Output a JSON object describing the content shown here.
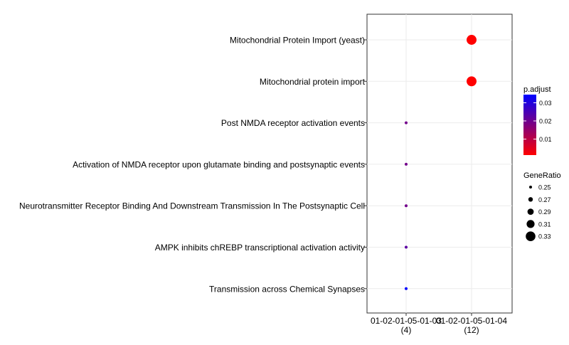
{
  "chart_data": {
    "type": "scatter",
    "title": "",
    "xlabel": "",
    "ylabel": "",
    "categories": [
      {
        "label": "01-02-01-05-01-03",
        "count": "(4)"
      },
      {
        "label": "01-02-01-05-01-04",
        "count": "(12)"
      }
    ],
    "terms": [
      "Mitochondrial Protein Import (yeast)",
      "Mitochondrial protein import",
      "Post NMDA receptor activation events",
      "Activation of NMDA receptor upon glutamate binding and postsynaptic events",
      "Neurotransmitter Receptor Binding And Downstream Transmission In The  Postsynaptic Cell",
      "AMPK inhibits chREBP transcriptional activation activity",
      "Transmission across Chemical Synapses"
    ],
    "points": [
      {
        "term": 0,
        "category": 1,
        "gene_ratio": 0.333,
        "p_adjust": 0.0012
      },
      {
        "term": 1,
        "category": 1,
        "gene_ratio": 0.333,
        "p_adjust": 0.0012
      },
      {
        "term": 2,
        "category": 0,
        "gene_ratio": 0.25,
        "p_adjust": 0.0195
      },
      {
        "term": 3,
        "category": 0,
        "gene_ratio": 0.25,
        "p_adjust": 0.0195
      },
      {
        "term": 4,
        "category": 0,
        "gene_ratio": 0.25,
        "p_adjust": 0.0195
      },
      {
        "term": 5,
        "category": 0,
        "gene_ratio": 0.25,
        "p_adjust": 0.0225
      },
      {
        "term": 6,
        "category": 0,
        "gene_ratio": 0.25,
        "p_adjust": 0.0345
      }
    ],
    "color_legend": {
      "title": "p.adjust",
      "ticks": [
        "0.03",
        "0.02",
        "0.01"
      ],
      "tick_values": [
        0.03,
        0.02,
        0.01
      ],
      "range": [
        0.0012,
        0.0345
      ],
      "low_color": "#ff0000",
      "high_color": "#0000ff"
    },
    "size_legend": {
      "title": "GeneRatio",
      "labels": [
        "0.25",
        "0.27",
        "0.29",
        "0.31",
        "0.33"
      ],
      "values": [
        0.25,
        0.27,
        0.29,
        0.31,
        0.33
      ]
    },
    "grid": true,
    "legend_position": "right"
  }
}
